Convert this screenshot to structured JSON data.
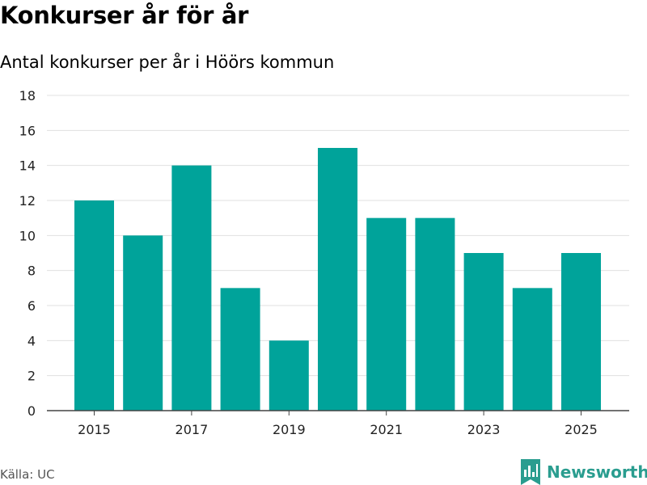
{
  "header": {
    "title": "Konkurser år för år",
    "subtitle": "Antal konkurser per år i Höörs kommun"
  },
  "footer": {
    "source": "Källa: UC",
    "brand": "Newsworthy"
  },
  "colors": {
    "bar": "#00a39a",
    "grid": "#e0e0e0",
    "axis": "#444444",
    "brand": "#2a9d8f"
  },
  "icons": {
    "brand_logo": "bar-chart-bookmark-icon"
  },
  "chart_data": {
    "type": "bar",
    "title": "Konkurser år för år",
    "subtitle": "Antal konkurser per år i Höörs kommun",
    "xlabel": "",
    "ylabel": "",
    "categories": [
      "2015",
      "2016",
      "2017",
      "2018",
      "2019",
      "2020",
      "2021",
      "2022",
      "2023",
      "2024",
      "2025"
    ],
    "values": [
      12,
      10,
      14,
      7,
      4,
      15,
      11,
      11,
      9,
      7,
      9
    ],
    "x_tick_labels": [
      "2015",
      "2017",
      "2019",
      "2021",
      "2023",
      "2025"
    ],
    "y_ticks": [
      0,
      2,
      4,
      6,
      8,
      10,
      12,
      14,
      16,
      18
    ],
    "ylim": [
      0,
      18
    ],
    "grid": true,
    "legend": "none"
  }
}
